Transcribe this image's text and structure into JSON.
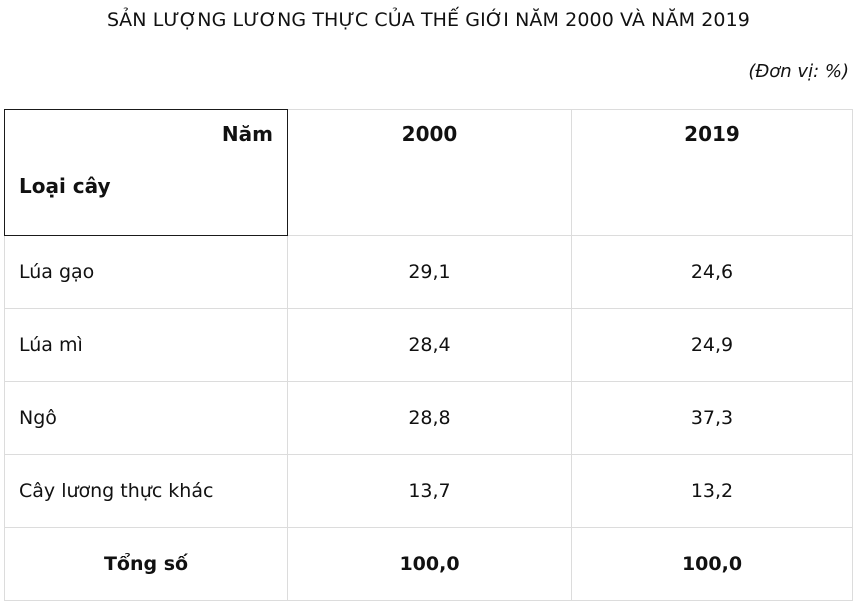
{
  "title": "SẢN LƯỢNG LƯƠNG THỰC CỦA THẾ GIỚI NĂM 2000 VÀ NĂM 2019",
  "unit": "(Đơn vị: %)",
  "table": {
    "corner_top": "Năm",
    "corner_bottom": "Loại cây",
    "years": [
      "2000",
      "2019"
    ],
    "rows": [
      {
        "label": "Lúa gạo",
        "values": [
          "29,1",
          "24,6"
        ]
      },
      {
        "label": "Lúa mì",
        "values": [
          "28,4",
          "24,9"
        ]
      },
      {
        "label": "Ngô",
        "values": [
          "28,8",
          "37,3"
        ]
      },
      {
        "label": "Cây lương thực khác",
        "values": [
          "13,7",
          "13,2"
        ]
      }
    ],
    "total": {
      "label": "Tổng số",
      "values": [
        "100,0",
        "100,0"
      ]
    }
  }
}
